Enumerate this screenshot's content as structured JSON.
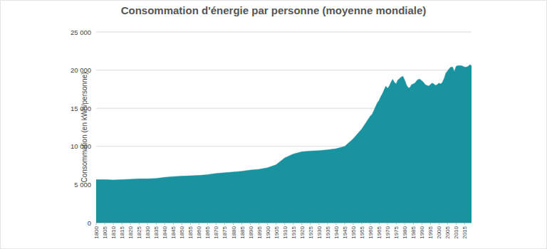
{
  "chart_data": {
    "type": "area",
    "title": "Consommation d'énergie par personne (moyenne mondiale)",
    "y_label": "Consommation (en kWh/personne)",
    "color": "#1a93a0",
    "grid": true,
    "x": [
      1800,
      1805,
      1810,
      1815,
      1820,
      1825,
      1830,
      1835,
      1840,
      1845,
      1850,
      1855,
      1860,
      1865,
      1870,
      1875,
      1880,
      1885,
      1890,
      1895,
      1900,
      1905,
      1910,
      1915,
      1920,
      1925,
      1930,
      1935,
      1940,
      1945,
      1950,
      1955,
      1960,
      1961,
      1962,
      1963,
      1964,
      1965,
      1966,
      1967,
      1968,
      1969,
      1970,
      1971,
      1972,
      1973,
      1974,
      1975,
      1976,
      1977,
      1978,
      1979,
      1980,
      1981,
      1982,
      1983,
      1984,
      1985,
      1986,
      1987,
      1988,
      1989,
      1990,
      1991,
      1992,
      1993,
      1994,
      1995,
      1996,
      1997,
      1998,
      1999,
      2000,
      2001,
      2002,
      2003,
      2004,
      2005,
      2006,
      2007,
      2008,
      2009,
      2010,
      2011,
      2012,
      2013,
      2014,
      2015,
      2016,
      2017,
      2018,
      2019
    ],
    "values": [
      5650,
      5650,
      5600,
      5650,
      5700,
      5750,
      5750,
      5800,
      5950,
      6050,
      6100,
      6150,
      6200,
      6300,
      6450,
      6550,
      6650,
      6750,
      6900,
      7000,
      7200,
      7600,
      8500,
      9000,
      9300,
      9400,
      9450,
      9550,
      9700,
      10000,
      11000,
      12300,
      14000,
      14200,
      14700,
      15200,
      15700,
      16000,
      16500,
      16900,
      17400,
      17900,
      17600,
      17900,
      18400,
      18800,
      18400,
      18200,
      18700,
      18900,
      19100,
      19200,
      18700,
      18100,
      17700,
      17700,
      18100,
      18200,
      18300,
      18600,
      18800,
      18800,
      18600,
      18400,
      18100,
      18000,
      17900,
      18100,
      18300,
      18200,
      18000,
      18100,
      18300,
      18200,
      18400,
      18900,
      19600,
      19900,
      20200,
      20400,
      20400,
      19800,
      20500,
      20600,
      20600,
      20600,
      20500,
      20400,
      20400,
      20500,
      20700,
      20600
    ],
    "xlim": [
      1800,
      2019
    ],
    "xticks": [
      1800,
      1805,
      1810,
      1815,
      1820,
      1825,
      1830,
      1835,
      1840,
      1845,
      1850,
      1855,
      1860,
      1865,
      1870,
      1875,
      1880,
      1885,
      1890,
      1895,
      1900,
      1905,
      1910,
      1915,
      1920,
      1925,
      1930,
      1935,
      1940,
      1945,
      1950,
      1955,
      1960,
      1965,
      1970,
      1975,
      1980,
      1985,
      1990,
      1995,
      2000,
      2005,
      2010,
      2015
    ],
    "ylim": [
      0,
      25000
    ],
    "yticks": [
      0,
      {
        "value": 5000,
        "label": "5 000"
      },
      {
        "value": 10000,
        "label": "10 000"
      },
      {
        "value": 15000,
        "label": "15 000"
      },
      {
        "value": 20000,
        "label": "20 000"
      },
      {
        "value": 25000,
        "label": "25 000"
      }
    ]
  }
}
